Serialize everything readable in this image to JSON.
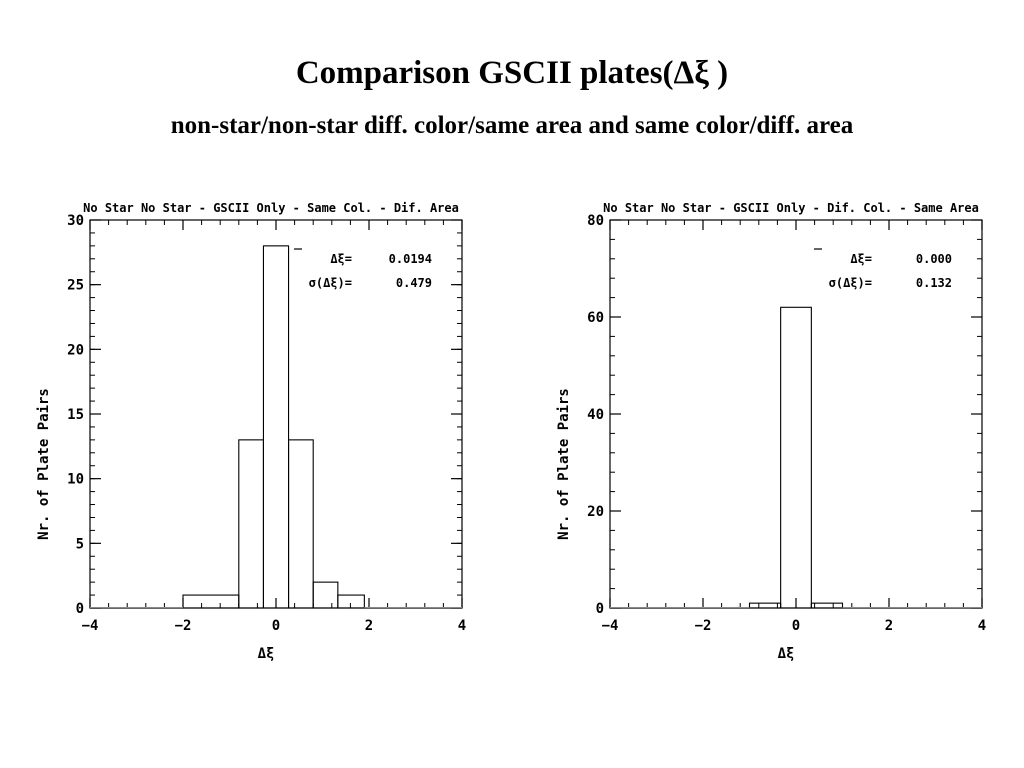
{
  "slide": {
    "title": "Comparison GSCII plates(Δξ )",
    "subtitle": "non-star/non-star diff. color/same area and same color/diff. area"
  },
  "chart_data": [
    {
      "type": "histogram",
      "title": "No Star No Star - GSCII Only - Same Col. - Dif. Area",
      "xlabel": "Δξ",
      "ylabel": "Nr. of Plate Pairs",
      "xlim": [
        -4,
        4
      ],
      "ylim": [
        0,
        30
      ],
      "xticks": [
        -4,
        -2,
        0,
        2,
        4
      ],
      "yticks": [
        0,
        5,
        10,
        15,
        20,
        25,
        30
      ],
      "bin_edges": [
        -2.0,
        -0.8,
        -0.27,
        0.27,
        0.8,
        1.33,
        1.9
      ],
      "values": [
        1,
        13,
        28,
        13,
        2,
        1
      ],
      "stats": [
        {
          "label": "Δξ=",
          "value": "0.0194"
        },
        {
          "label": "σ(Δξ)=",
          "value": "0.479"
        }
      ]
    },
    {
      "type": "histogram",
      "title": "No Star No Star - GSCII Only - Dif. Col. - Same Area",
      "xlabel": "Δξ",
      "ylabel": "Nr. of Plate Pairs",
      "xlim": [
        -4,
        4
      ],
      "ylim": [
        0,
        80
      ],
      "xticks": [
        -4,
        -2,
        0,
        2,
        4
      ],
      "yticks": [
        0,
        20,
        40,
        60,
        80
      ],
      "bin_edges": [
        -1.0,
        -0.33,
        0.33,
        1.0
      ],
      "values": [
        1,
        62,
        1
      ],
      "stats": [
        {
          "label": "Δξ=",
          "value": "0.000"
        },
        {
          "label": "σ(Δξ)=",
          "value": "0.132"
        }
      ]
    }
  ]
}
